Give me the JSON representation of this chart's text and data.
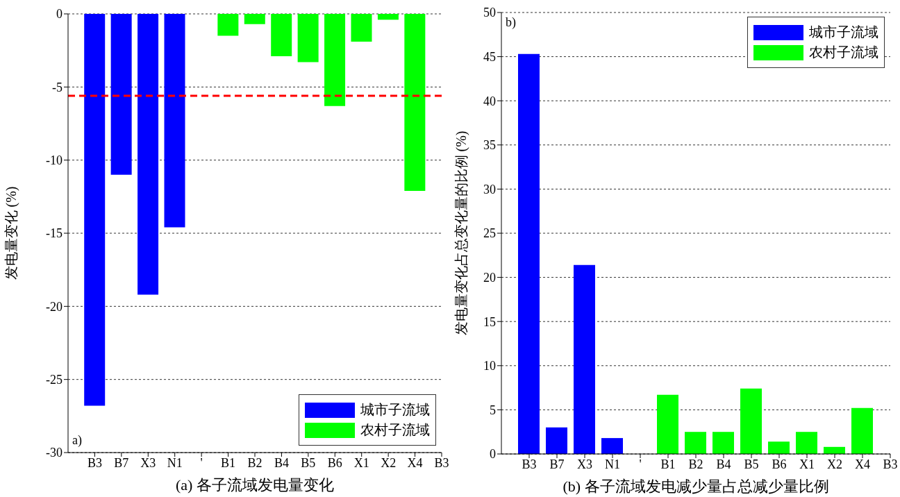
{
  "chart_data": [
    {
      "type": "bar",
      "xlabel": "(a)  各子流域发电量变化",
      "ylabel": "发电量变化 (%)",
      "categories": [
        "B3",
        "B7",
        "X3",
        "N1",
        "'",
        "B1",
        "B2",
        "B4",
        "B5",
        "B6",
        "X1",
        "X2",
        "X4",
        "B3"
      ],
      "series": [
        {
          "name": "城市子流域",
          "color": "#0000ff",
          "values": [
            -26.8,
            -11.0,
            -19.2,
            -14.6,
            null,
            null,
            null,
            null,
            null,
            null,
            null,
            null,
            null,
            null
          ]
        },
        {
          "name": "农村子流域",
          "color": "#00ff00",
          "values": [
            null,
            null,
            null,
            null,
            null,
            -1.5,
            -0.7,
            -2.9,
            -3.3,
            -6.3,
            -1.9,
            -0.4,
            -12.1,
            null
          ]
        }
      ],
      "ylim": [
        -30,
        0
      ],
      "yticks": [
        -30,
        -25,
        -20,
        -15,
        -10,
        -5,
        0
      ],
      "grid": "y",
      "legend": "bottom right",
      "ref_lines": [
        {
          "axis": "y",
          "value": -5.6,
          "color": "#ff0000",
          "line_style": "dashed"
        }
      ],
      "annotations": [
        "a)"
      ]
    },
    {
      "type": "bar",
      "xlabel": "(b)  各子流域发电减少量占总减少量比例",
      "ylabel": "发电量变化占总变化量的比例 (%)",
      "categories": [
        "B3",
        "B7",
        "X3",
        "N1",
        "'",
        "B1",
        "B2",
        "B4",
        "B5",
        "B6",
        "X1",
        "X2",
        "X4",
        "B3"
      ],
      "series": [
        {
          "name": "城市子流域",
          "color": "#0000ff",
          "values": [
            45.3,
            3.0,
            21.4,
            1.8,
            null,
            null,
            null,
            null,
            null,
            null,
            null,
            null,
            null,
            null
          ]
        },
        {
          "name": "农村子流域",
          "color": "#00ff00",
          "values": [
            null,
            null,
            null,
            null,
            null,
            6.7,
            2.5,
            2.5,
            7.4,
            1.4,
            2.5,
            0.8,
            5.2,
            null
          ]
        }
      ],
      "ylim": [
        0,
        50
      ],
      "yticks": [
        0,
        5,
        10,
        15,
        20,
        25,
        30,
        35,
        40,
        45,
        50
      ],
      "grid": "y",
      "legend": "top right",
      "annotations": [
        "b)"
      ]
    }
  ]
}
